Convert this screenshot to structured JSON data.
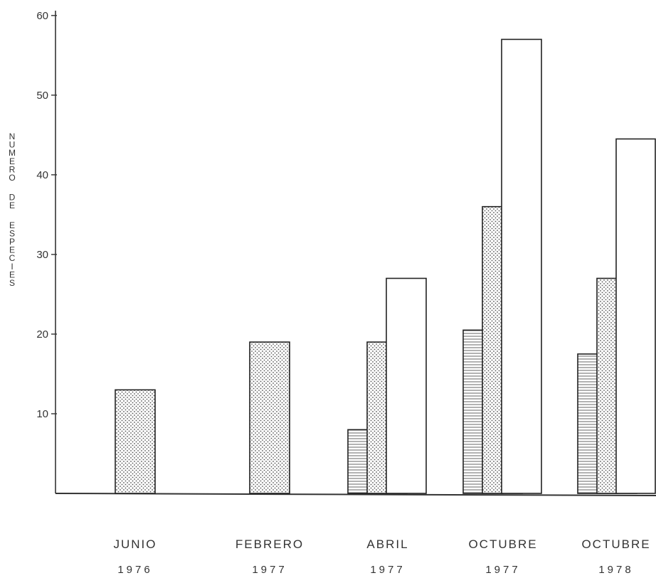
{
  "chart_data": {
    "type": "bar",
    "title": "",
    "ylabel": "NUMERO DE ESPECIES",
    "xlabel": "",
    "ylim": [
      0,
      60
    ],
    "yticks": [
      10,
      20,
      30,
      40,
      50,
      60
    ],
    "grid": false,
    "categories": [
      {
        "label": "JUNIO",
        "year": "1976"
      },
      {
        "label": "FEBRERO",
        "year": "1977"
      },
      {
        "label": "ABRIL",
        "year": "1977"
      },
      {
        "label": "OCTUBRE",
        "year": "1977"
      },
      {
        "label": "OCTUBRE",
        "year": "1978"
      }
    ],
    "series": [
      {
        "pattern": "horizontal-lines",
        "values": [
          null,
          null,
          8,
          20.5,
          17.5
        ]
      },
      {
        "pattern": "dots",
        "values": [
          13,
          19,
          19,
          36,
          27
        ]
      },
      {
        "pattern": "open",
        "values": [
          null,
          null,
          27,
          57,
          44.5
        ]
      }
    ]
  }
}
